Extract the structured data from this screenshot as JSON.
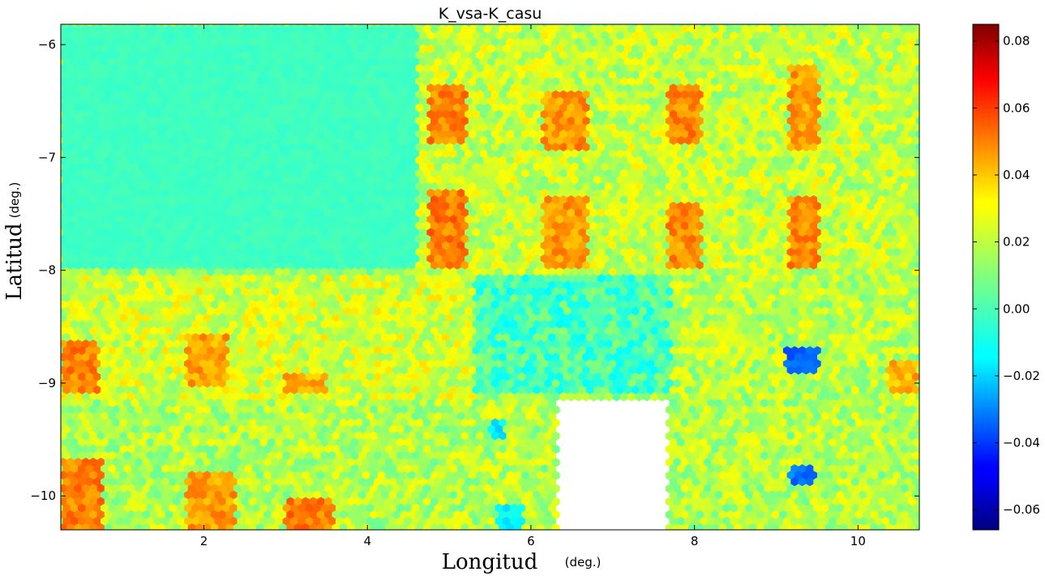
{
  "chart_data": {
    "type": "heatmap",
    "subtype": "hexbin",
    "title": "K_vsa-K_casu",
    "xlabel": "Longitud",
    "xlabel_unit": "(deg.)",
    "ylabel": "Latitud",
    "ylabel_unit": "(deg.)",
    "xlim": [
      0.25,
      10.75
    ],
    "ylim": [
      -10.3,
      -5.82
    ],
    "xticks": [
      2,
      4,
      6,
      8,
      10
    ],
    "xtick_labels": [
      "2",
      "4",
      "6",
      "8",
      "10"
    ],
    "yticks": [
      -6,
      -7,
      -8,
      -9,
      -10
    ],
    "ytick_labels": [
      "−6",
      "−7",
      "−8",
      "−9",
      "−10"
    ],
    "grid": false,
    "colormap": "jet",
    "colorbar": {
      "range": [
        -0.066,
        0.085
      ],
      "ticks": [
        0.08,
        0.06,
        0.04,
        0.02,
        0.0,
        -0.02,
        -0.04,
        -0.06
      ],
      "tick_labels": [
        "0.08",
        "0.06",
        "0.04",
        "0.02",
        "0.00",
        "−0.02",
        "−0.04",
        "−0.06"
      ]
    },
    "regions": [
      {
        "x": [
          0.25,
          4.6
        ],
        "y": [
          -8.0,
          -5.85
        ],
        "value": 0.0
      },
      {
        "x": [
          4.6,
          10.75
        ],
        "y": [
          -8.05,
          -5.85
        ],
        "value": 0.02
      },
      {
        "x": [
          0.25,
          5.3
        ],
        "y": [
          -9.15,
          -8.02
        ],
        "value": 0.022
      },
      {
        "x": [
          5.3,
          7.7
        ],
        "y": [
          -9.1,
          -8.02
        ],
        "value": 0.001
      },
      {
        "x": [
          7.7,
          10.75
        ],
        "y": [
          -9.15,
          -8.02
        ],
        "value": 0.018
      },
      {
        "x": [
          0.25,
          10.75
        ],
        "y": [
          -10.3,
          -9.15
        ],
        "value": 0.017
      }
    ],
    "hotspots": [
      {
        "x": [
          4.75,
          5.2
        ],
        "y": [
          -6.9,
          -6.35
        ],
        "value": 0.046
      },
      {
        "x": [
          4.75,
          5.2
        ],
        "y": [
          -8.0,
          -7.3
        ],
        "value": 0.048
      },
      {
        "x": [
          6.15,
          6.7
        ],
        "y": [
          -6.95,
          -6.4
        ],
        "value": 0.044
      },
      {
        "x": [
          6.15,
          6.7
        ],
        "y": [
          -8.0,
          -7.35
        ],
        "value": 0.043
      },
      {
        "x": [
          7.65,
          8.1
        ],
        "y": [
          -6.9,
          -6.35
        ],
        "value": 0.046
      },
      {
        "x": [
          7.65,
          8.1
        ],
        "y": [
          -8.0,
          -7.4
        ],
        "value": 0.045
      },
      {
        "x": [
          9.15,
          9.55
        ],
        "y": [
          -6.95,
          -6.2
        ],
        "value": 0.043
      },
      {
        "x": [
          9.15,
          9.55
        ],
        "y": [
          -8.0,
          -7.35
        ],
        "value": 0.046
      },
      {
        "x": [
          0.25,
          0.7
        ],
        "y": [
          -9.1,
          -8.6
        ],
        "value": 0.047
      },
      {
        "x": [
          1.8,
          2.3
        ],
        "y": [
          -9.05,
          -8.55
        ],
        "value": 0.042
      },
      {
        "x": [
          3.0,
          3.5
        ],
        "y": [
          -9.1,
          -8.9
        ],
        "value": 0.04
      },
      {
        "x": [
          0.25,
          0.75
        ],
        "y": [
          -10.3,
          -9.7
        ],
        "value": 0.047
      },
      {
        "x": [
          1.8,
          2.4
        ],
        "y": [
          -10.3,
          -9.8
        ],
        "value": 0.043
      },
      {
        "x": [
          3.0,
          3.6
        ],
        "y": [
          -10.3,
          -10.0
        ],
        "value": 0.048
      },
      {
        "x": [
          10.35,
          10.75
        ],
        "y": [
          -9.1,
          -8.8
        ],
        "value": 0.04
      }
    ],
    "coldspots": [
      {
        "x": [
          9.1,
          9.55
        ],
        "y": [
          -8.9,
          -8.7
        ],
        "value": -0.033
      },
      {
        "x": [
          9.15,
          9.5
        ],
        "y": [
          -9.9,
          -9.75
        ],
        "value": -0.03
      },
      {
        "x": [
          5.5,
          5.7
        ],
        "y": [
          -9.5,
          -9.35
        ],
        "value": -0.012
      },
      {
        "x": [
          5.6,
          5.9
        ],
        "y": [
          -10.3,
          -10.1
        ],
        "value": -0.01
      }
    ],
    "gaps": [
      {
        "x": [
          6.35,
          7.65
        ],
        "y": [
          -10.3,
          -9.15
        ]
      }
    ]
  }
}
